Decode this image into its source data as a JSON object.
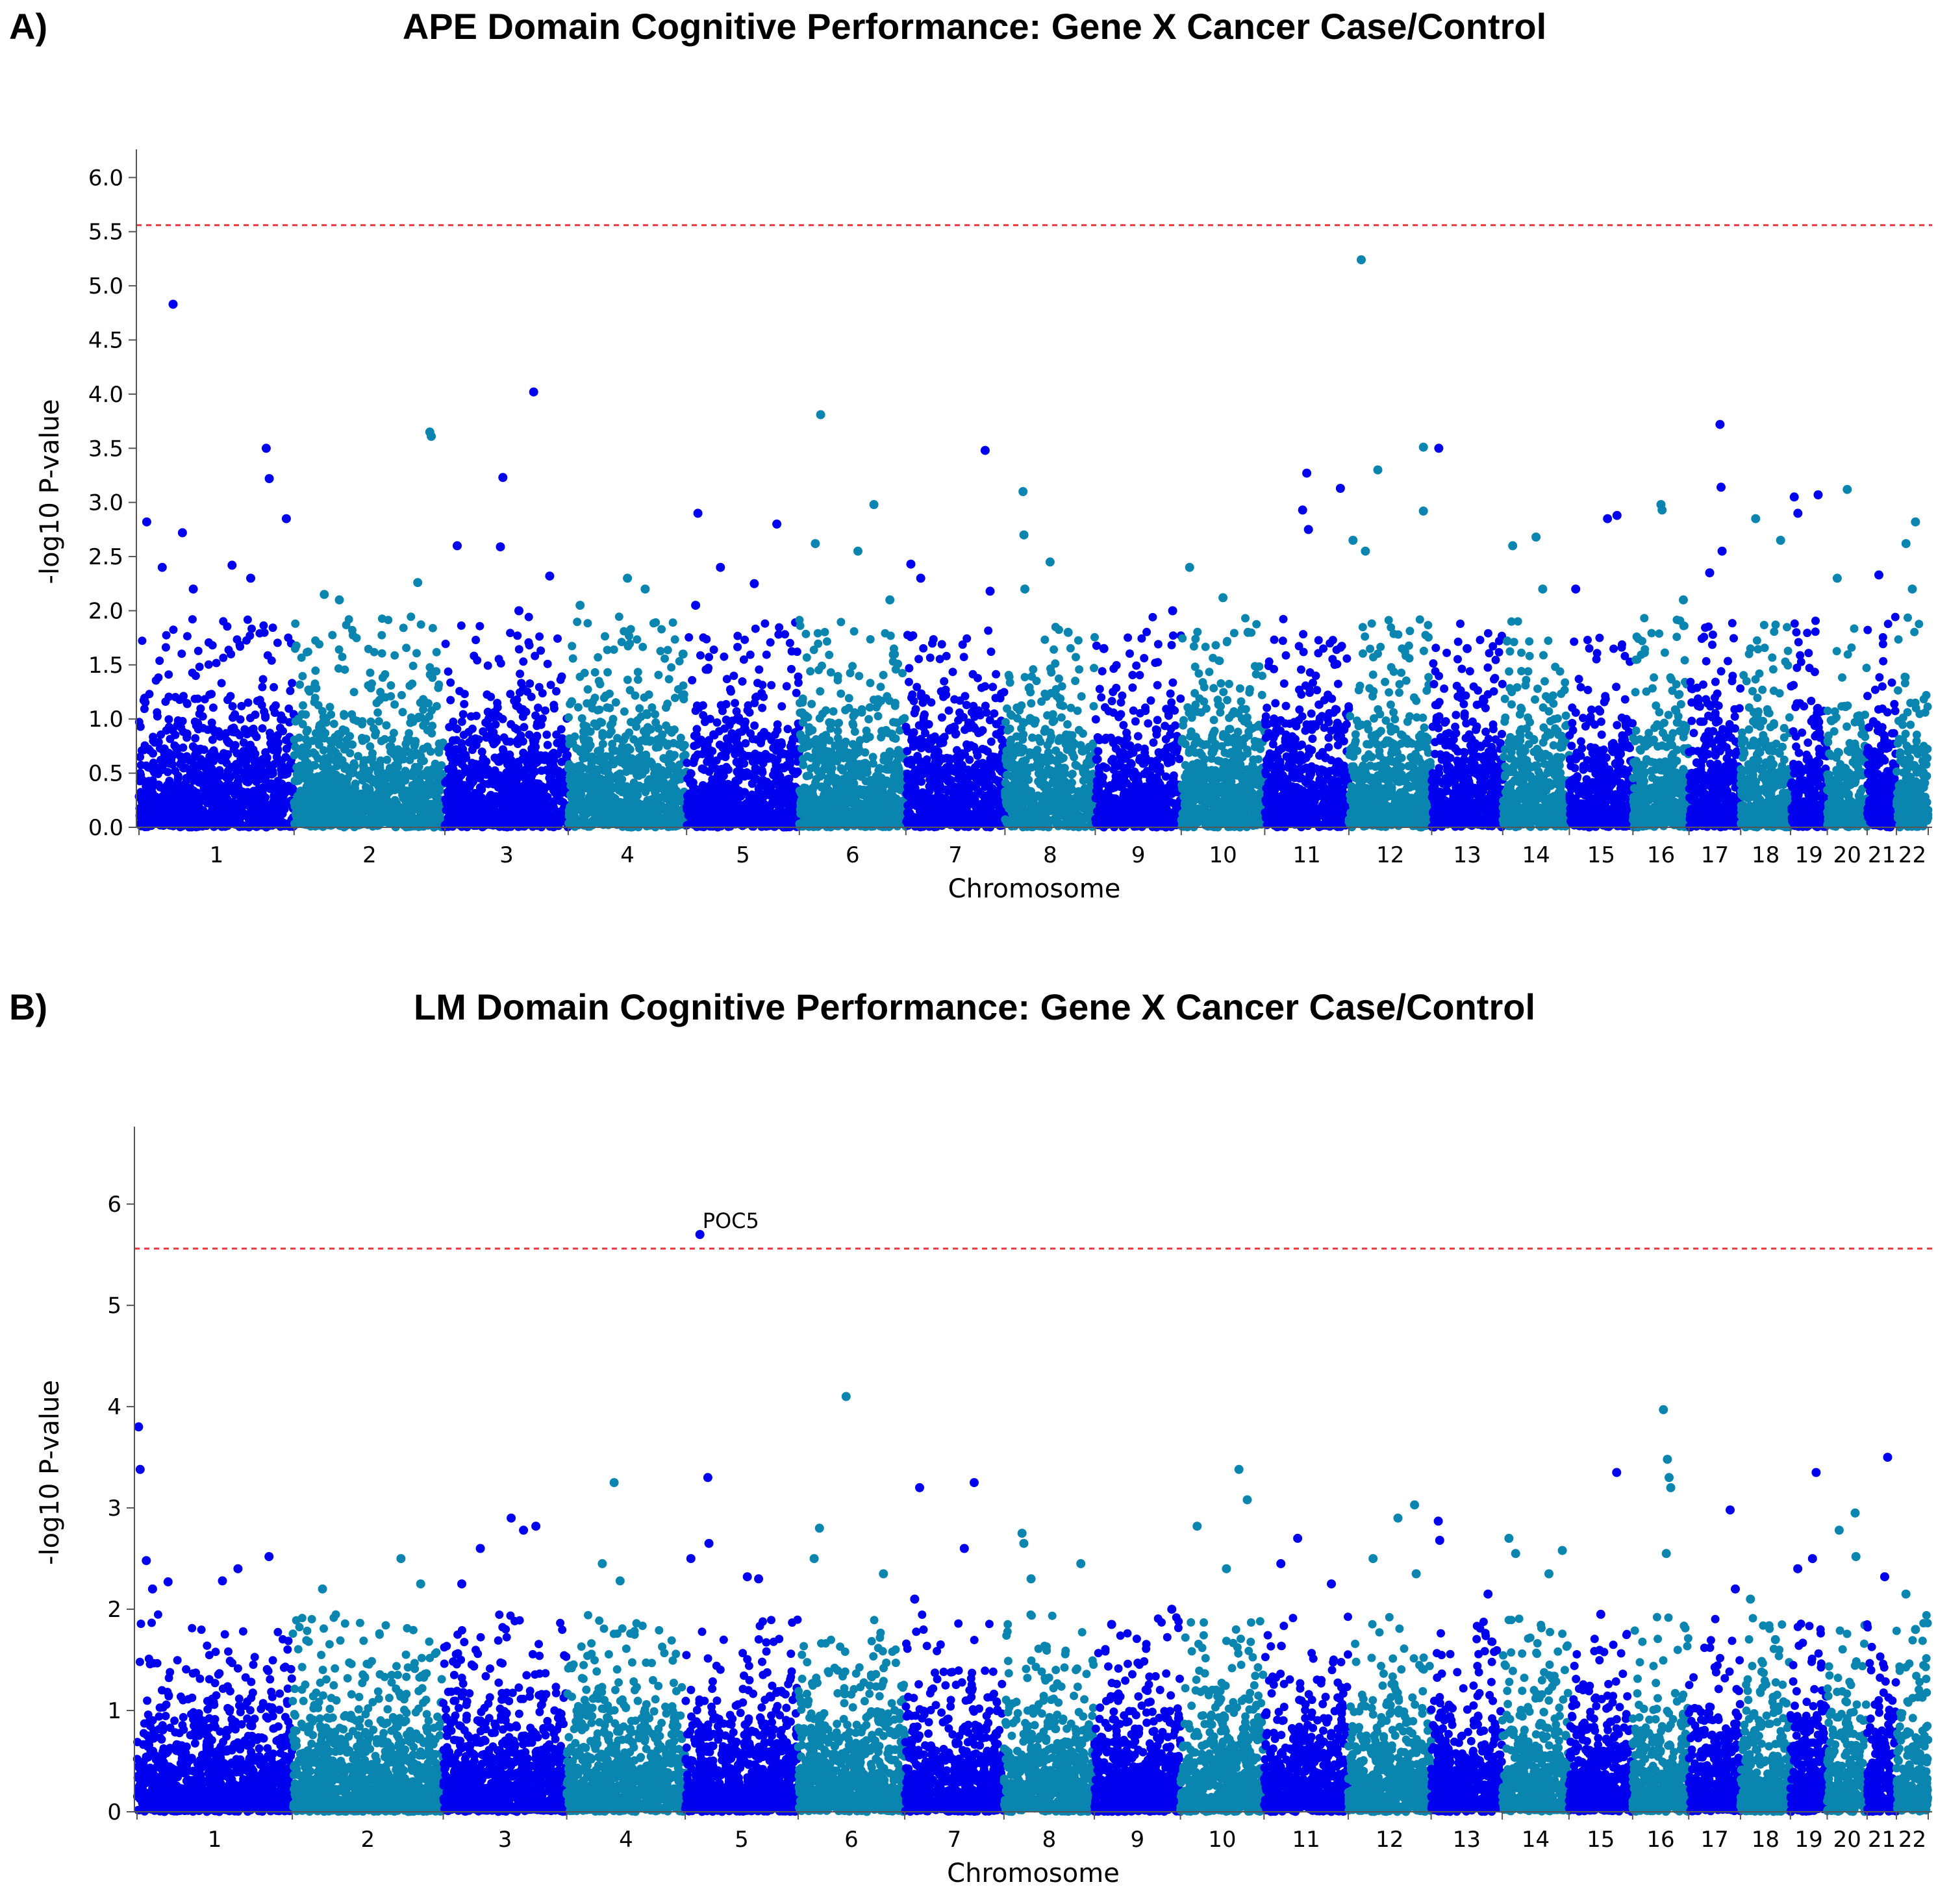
{
  "panels": [
    {
      "letter": "A)",
      "title": "APE Domain Cognitive Performance: Gene X Cancer Case/Control",
      "xlabel": "Chromosome",
      "ylabel": "-log10 P-value"
    },
    {
      "letter": "B)",
      "title": "LM Domain Cognitive Performance: Gene X Cancer Case/Control",
      "xlabel": "Chromosome",
      "ylabel": "-log10 P-value"
    }
  ],
  "colors": {
    "odd": "#0000ee",
    "even": "#0a85b0",
    "threshold": "#e8383d"
  },
  "chart_data": [
    {
      "type": "scatter",
      "title": "APE Domain Cognitive Performance: Gene X Cancer Case/Control",
      "xlabel": "Chromosome",
      "ylabel": "-log10 P-value",
      "ylim": [
        0,
        6.2
      ],
      "yticks": [
        "0.0",
        "0.5",
        "1.0",
        "1.5",
        "2.0",
        "2.5",
        "3.0",
        "3.5",
        "4.0",
        "4.5",
        "5.0",
        "5.5",
        "6.0"
      ],
      "categories": [
        "1",
        "2",
        "3",
        "4",
        "5",
        "6",
        "7",
        "8",
        "9",
        "10",
        "11",
        "12",
        "13",
        "14",
        "15",
        "16",
        "17",
        "18",
        "19",
        "20",
        "21",
        "22"
      ],
      "chromosome_lengths": [
        249,
        242,
        198,
        190,
        181,
        171,
        159,
        145,
        138,
        134,
        135,
        133,
        114,
        107,
        102,
        90,
        83,
        80,
        59,
        64,
        47,
        51
      ],
      "threshold": 5.56,
      "peaks": [
        {
          "chr": 1,
          "pos": 0.05,
          "y": 2.82
        },
        {
          "chr": 1,
          "pos": 0.15,
          "y": 2.4
        },
        {
          "chr": 1,
          "pos": 0.22,
          "y": 4.83
        },
        {
          "chr": 1,
          "pos": 0.28,
          "y": 2.72
        },
        {
          "chr": 1,
          "pos": 0.35,
          "y": 2.2
        },
        {
          "chr": 1,
          "pos": 0.6,
          "y": 2.42
        },
        {
          "chr": 1,
          "pos": 0.72,
          "y": 2.3
        },
        {
          "chr": 1,
          "pos": 0.82,
          "y": 3.5
        },
        {
          "chr": 1,
          "pos": 0.84,
          "y": 3.22
        },
        {
          "chr": 1,
          "pos": 0.95,
          "y": 2.85
        },
        {
          "chr": 2,
          "pos": 0.2,
          "y": 2.15
        },
        {
          "chr": 2,
          "pos": 0.3,
          "y": 2.1
        },
        {
          "chr": 2,
          "pos": 0.82,
          "y": 2.26
        },
        {
          "chr": 2,
          "pos": 0.9,
          "y": 3.65
        },
        {
          "chr": 2,
          "pos": 0.91,
          "y": 3.61
        },
        {
          "chr": 3,
          "pos": 0.1,
          "y": 2.6
        },
        {
          "chr": 3,
          "pos": 0.45,
          "y": 2.59
        },
        {
          "chr": 3,
          "pos": 0.47,
          "y": 3.23
        },
        {
          "chr": 3,
          "pos": 0.6,
          "y": 2.0
        },
        {
          "chr": 3,
          "pos": 0.72,
          "y": 4.02
        },
        {
          "chr": 3,
          "pos": 0.85,
          "y": 2.32
        },
        {
          "chr": 4,
          "pos": 0.1,
          "y": 2.05
        },
        {
          "chr": 4,
          "pos": 0.5,
          "y": 2.3
        },
        {
          "chr": 4,
          "pos": 0.65,
          "y": 2.2
        },
        {
          "chr": 4,
          "pos": 0.97,
          "y": 1.6
        },
        {
          "chr": 5,
          "pos": 0.1,
          "y": 2.9
        },
        {
          "chr": 5,
          "pos": 0.08,
          "y": 2.05
        },
        {
          "chr": 5,
          "pos": 0.3,
          "y": 2.4
        },
        {
          "chr": 5,
          "pos": 0.6,
          "y": 2.25
        },
        {
          "chr": 5,
          "pos": 0.8,
          "y": 2.8
        },
        {
          "chr": 6,
          "pos": 0.15,
          "y": 2.62
        },
        {
          "chr": 6,
          "pos": 0.2,
          "y": 3.81
        },
        {
          "chr": 6,
          "pos": 0.55,
          "y": 2.55
        },
        {
          "chr": 6,
          "pos": 0.7,
          "y": 2.98
        },
        {
          "chr": 6,
          "pos": 0.85,
          "y": 2.1
        },
        {
          "chr": 7,
          "pos": 0.05,
          "y": 2.43
        },
        {
          "chr": 7,
          "pos": 0.15,
          "y": 2.3
        },
        {
          "chr": 7,
          "pos": 0.8,
          "y": 3.48
        },
        {
          "chr": 7,
          "pos": 0.85,
          "y": 2.18
        },
        {
          "chr": 8,
          "pos": 0.2,
          "y": 3.1
        },
        {
          "chr": 8,
          "pos": 0.21,
          "y": 2.7
        },
        {
          "chr": 8,
          "pos": 0.22,
          "y": 2.2
        },
        {
          "chr": 8,
          "pos": 0.5,
          "y": 2.45
        },
        {
          "chr": 8,
          "pos": 0.7,
          "y": 1.8
        },
        {
          "chr": 9,
          "pos": 0.1,
          "y": 1.65
        },
        {
          "chr": 9,
          "pos": 0.9,
          "y": 2.0
        },
        {
          "chr": 10,
          "pos": 0.1,
          "y": 2.4
        },
        {
          "chr": 10,
          "pos": 0.5,
          "y": 2.12
        },
        {
          "chr": 10,
          "pos": 0.8,
          "y": 1.8
        },
        {
          "chr": 11,
          "pos": 0.45,
          "y": 2.93
        },
        {
          "chr": 11,
          "pos": 0.5,
          "y": 3.27
        },
        {
          "chr": 11,
          "pos": 0.52,
          "y": 2.75
        },
        {
          "chr": 11,
          "pos": 0.9,
          "y": 3.13
        },
        {
          "chr": 12,
          "pos": 0.05,
          "y": 2.65
        },
        {
          "chr": 12,
          "pos": 0.15,
          "y": 5.24
        },
        {
          "chr": 12,
          "pos": 0.2,
          "y": 2.55
        },
        {
          "chr": 12,
          "pos": 0.35,
          "y": 3.3
        },
        {
          "chr": 12,
          "pos": 0.9,
          "y": 3.51
        },
        {
          "chr": 12,
          "pos": 0.9,
          "y": 2.92
        },
        {
          "chr": 13,
          "pos": 0.1,
          "y": 3.5
        },
        {
          "chr": 13,
          "pos": 0.5,
          "y": 1.65
        },
        {
          "chr": 14,
          "pos": 0.15,
          "y": 2.6
        },
        {
          "chr": 14,
          "pos": 0.5,
          "y": 2.68
        },
        {
          "chr": 14,
          "pos": 0.6,
          "y": 2.2
        },
        {
          "chr": 15,
          "pos": 0.1,
          "y": 2.2
        },
        {
          "chr": 15,
          "pos": 0.6,
          "y": 2.85
        },
        {
          "chr": 15,
          "pos": 0.75,
          "y": 2.88
        },
        {
          "chr": 16,
          "pos": 0.5,
          "y": 2.98
        },
        {
          "chr": 16,
          "pos": 0.52,
          "y": 2.93
        },
        {
          "chr": 16,
          "pos": 0.9,
          "y": 2.1
        },
        {
          "chr": 17,
          "pos": 0.6,
          "y": 3.72
        },
        {
          "chr": 17,
          "pos": 0.62,
          "y": 3.14
        },
        {
          "chr": 17,
          "pos": 0.64,
          "y": 2.55
        },
        {
          "chr": 17,
          "pos": 0.4,
          "y": 2.35
        },
        {
          "chr": 18,
          "pos": 0.3,
          "y": 2.85
        },
        {
          "chr": 18,
          "pos": 0.8,
          "y": 2.65
        },
        {
          "chr": 19,
          "pos": 0.1,
          "y": 3.05
        },
        {
          "chr": 19,
          "pos": 0.2,
          "y": 2.9
        },
        {
          "chr": 19,
          "pos": 0.75,
          "y": 3.07
        },
        {
          "chr": 20,
          "pos": 0.25,
          "y": 2.3
        },
        {
          "chr": 20,
          "pos": 0.5,
          "y": 3.12
        },
        {
          "chr": 21,
          "pos": 0.4,
          "y": 2.33
        },
        {
          "chr": 22,
          "pos": 0.3,
          "y": 2.62
        },
        {
          "chr": 22,
          "pos": 0.6,
          "y": 2.82
        },
        {
          "chr": 22,
          "pos": 0.5,
          "y": 2.2
        }
      ]
    },
    {
      "type": "scatter",
      "title": "LM Domain Cognitive Performance: Gene X Cancer Case/Control",
      "xlabel": "Chromosome",
      "ylabel": "-log10 P-value",
      "ylim": [
        0,
        6.7
      ],
      "yticks": [
        "0",
        "1",
        "2",
        "3",
        "4",
        "5",
        "6"
      ],
      "categories": [
        "1",
        "2",
        "3",
        "4",
        "5",
        "6",
        "7",
        "8",
        "9",
        "10",
        "11",
        "12",
        "13",
        "14",
        "15",
        "16",
        "17",
        "18",
        "19",
        "20",
        "21",
        "22"
      ],
      "chromosome_lengths": [
        249,
        242,
        198,
        190,
        181,
        171,
        159,
        145,
        138,
        134,
        135,
        133,
        114,
        107,
        102,
        90,
        83,
        80,
        59,
        64,
        47,
        51
      ],
      "threshold": 5.56,
      "annotation": {
        "label": "POC5",
        "chr": 5,
        "pos": 0.13,
        "y": 5.7
      },
      "peaks": [
        {
          "chr": 1,
          "pos": 0.01,
          "y": 3.8
        },
        {
          "chr": 1,
          "pos": 0.02,
          "y": 3.38
        },
        {
          "chr": 1,
          "pos": 0.06,
          "y": 2.48
        },
        {
          "chr": 1,
          "pos": 0.1,
          "y": 2.2
        },
        {
          "chr": 1,
          "pos": 0.2,
          "y": 2.27
        },
        {
          "chr": 1,
          "pos": 0.55,
          "y": 2.28
        },
        {
          "chr": 1,
          "pos": 0.65,
          "y": 2.4
        },
        {
          "chr": 1,
          "pos": 0.85,
          "y": 2.52
        },
        {
          "chr": 2,
          "pos": 0.2,
          "y": 2.2
        },
        {
          "chr": 2,
          "pos": 0.72,
          "y": 2.5
        },
        {
          "chr": 2,
          "pos": 0.85,
          "y": 2.25
        },
        {
          "chr": 3,
          "pos": 0.15,
          "y": 2.25
        },
        {
          "chr": 3,
          "pos": 0.3,
          "y": 2.6
        },
        {
          "chr": 3,
          "pos": 0.55,
          "y": 2.9
        },
        {
          "chr": 3,
          "pos": 0.65,
          "y": 2.78
        },
        {
          "chr": 3,
          "pos": 0.75,
          "y": 2.82
        },
        {
          "chr": 4,
          "pos": 0.3,
          "y": 2.45
        },
        {
          "chr": 4,
          "pos": 0.4,
          "y": 3.25
        },
        {
          "chr": 4,
          "pos": 0.45,
          "y": 2.28
        },
        {
          "chr": 5,
          "pos": 0.05,
          "y": 2.5
        },
        {
          "chr": 5,
          "pos": 0.2,
          "y": 3.3
        },
        {
          "chr": 5,
          "pos": 0.21,
          "y": 2.65
        },
        {
          "chr": 5,
          "pos": 0.55,
          "y": 2.32
        },
        {
          "chr": 5,
          "pos": 0.65,
          "y": 2.3
        },
        {
          "chr": 6,
          "pos": 0.15,
          "y": 2.5
        },
        {
          "chr": 6,
          "pos": 0.2,
          "y": 2.8
        },
        {
          "chr": 6,
          "pos": 0.45,
          "y": 4.1
        },
        {
          "chr": 6,
          "pos": 0.8,
          "y": 2.35
        },
        {
          "chr": 7,
          "pos": 0.1,
          "y": 2.1
        },
        {
          "chr": 7,
          "pos": 0.15,
          "y": 3.2
        },
        {
          "chr": 7,
          "pos": 0.6,
          "y": 2.6
        },
        {
          "chr": 7,
          "pos": 0.7,
          "y": 3.25
        },
        {
          "chr": 8,
          "pos": 0.2,
          "y": 2.75
        },
        {
          "chr": 8,
          "pos": 0.22,
          "y": 2.65
        },
        {
          "chr": 8,
          "pos": 0.3,
          "y": 2.3
        },
        {
          "chr": 8,
          "pos": 0.85,
          "y": 2.45
        },
        {
          "chr": 9,
          "pos": 0.2,
          "y": 1.85
        },
        {
          "chr": 9,
          "pos": 0.9,
          "y": 2.0
        },
        {
          "chr": 10,
          "pos": 0.2,
          "y": 2.82
        },
        {
          "chr": 10,
          "pos": 0.7,
          "y": 3.38
        },
        {
          "chr": 10,
          "pos": 0.8,
          "y": 3.08
        },
        {
          "chr": 10,
          "pos": 0.55,
          "y": 2.4
        },
        {
          "chr": 11,
          "pos": 0.2,
          "y": 2.45
        },
        {
          "chr": 11,
          "pos": 0.4,
          "y": 2.7
        },
        {
          "chr": 11,
          "pos": 0.8,
          "y": 2.25
        },
        {
          "chr": 12,
          "pos": 0.3,
          "y": 2.5
        },
        {
          "chr": 12,
          "pos": 0.6,
          "y": 2.9
        },
        {
          "chr": 12,
          "pos": 0.8,
          "y": 3.03
        },
        {
          "chr": 12,
          "pos": 0.82,
          "y": 2.35
        },
        {
          "chr": 13,
          "pos": 0.1,
          "y": 2.87
        },
        {
          "chr": 13,
          "pos": 0.12,
          "y": 2.68
        },
        {
          "chr": 13,
          "pos": 0.8,
          "y": 2.15
        },
        {
          "chr": 14,
          "pos": 0.1,
          "y": 2.7
        },
        {
          "chr": 14,
          "pos": 0.2,
          "y": 2.55
        },
        {
          "chr": 14,
          "pos": 0.7,
          "y": 2.35
        },
        {
          "chr": 14,
          "pos": 0.9,
          "y": 2.58
        },
        {
          "chr": 15,
          "pos": 0.75,
          "y": 3.35
        },
        {
          "chr": 15,
          "pos": 0.5,
          "y": 1.95
        },
        {
          "chr": 16,
          "pos": 0.55,
          "y": 3.97
        },
        {
          "chr": 16,
          "pos": 0.62,
          "y": 3.48
        },
        {
          "chr": 16,
          "pos": 0.65,
          "y": 3.3
        },
        {
          "chr": 16,
          "pos": 0.68,
          "y": 3.2
        },
        {
          "chr": 16,
          "pos": 0.6,
          "y": 2.55
        },
        {
          "chr": 17,
          "pos": 0.8,
          "y": 2.98
        },
        {
          "chr": 17,
          "pos": 0.9,
          "y": 2.2
        },
        {
          "chr": 18,
          "pos": 0.2,
          "y": 2.1
        },
        {
          "chr": 18,
          "pos": 0.7,
          "y": 1.7
        },
        {
          "chr": 19,
          "pos": 0.7,
          "y": 3.35
        },
        {
          "chr": 19,
          "pos": 0.6,
          "y": 2.5
        },
        {
          "chr": 19,
          "pos": 0.2,
          "y": 2.4
        },
        {
          "chr": 20,
          "pos": 0.3,
          "y": 2.78
        },
        {
          "chr": 20,
          "pos": 0.7,
          "y": 2.95
        },
        {
          "chr": 20,
          "pos": 0.72,
          "y": 2.52
        },
        {
          "chr": 21,
          "pos": 0.7,
          "y": 3.5
        },
        {
          "chr": 21,
          "pos": 0.6,
          "y": 2.32
        },
        {
          "chr": 22,
          "pos": 0.3,
          "y": 2.15
        },
        {
          "chr": 22,
          "pos": 0.6,
          "y": 1.8
        }
      ]
    }
  ]
}
